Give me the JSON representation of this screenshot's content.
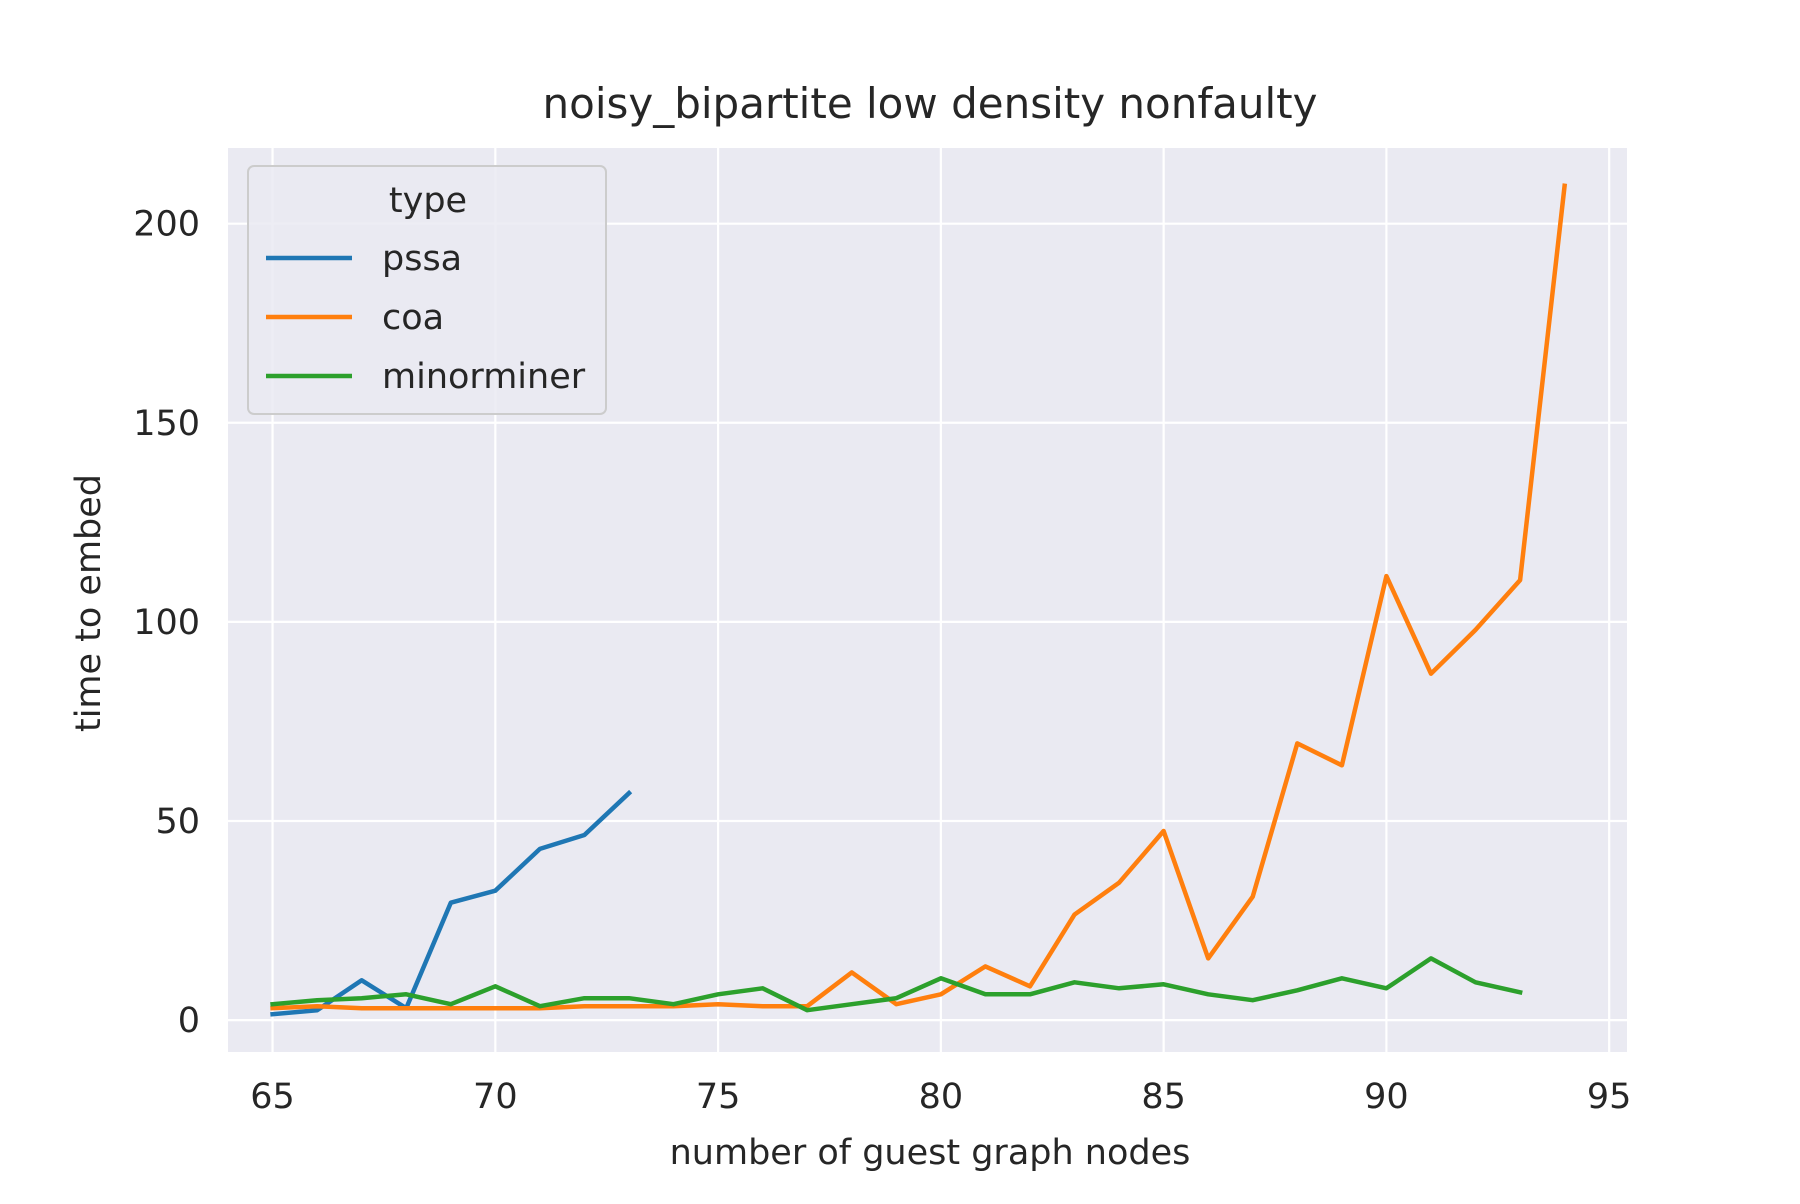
{
  "chart_data": {
    "type": "line",
    "title": "noisy_bipartite low density nonfaulty",
    "xlabel": "number of guest graph nodes",
    "ylabel": "time to embed",
    "xlim": [
      64,
      95.4
    ],
    "ylim": [
      -8,
      219
    ],
    "xticks": [
      65,
      70,
      75,
      80,
      85,
      90,
      95
    ],
    "yticks": [
      0,
      50,
      100,
      150,
      200
    ],
    "grid": true,
    "background": "#eaeaf2",
    "grid_color": "#ffffff",
    "legend": {
      "title": "type",
      "placement": "top-left",
      "entries": [
        "pssa",
        "coa",
        "minorminer"
      ]
    },
    "series": [
      {
        "name": "pssa",
        "color": "#1f77b4",
        "x": [
          65,
          66,
          67,
          68,
          69,
          70,
          71,
          72,
          73
        ],
        "y": [
          1.5,
          2.5,
          10,
          3,
          29.5,
          32.5,
          43,
          46.5,
          57
        ]
      },
      {
        "name": "coa",
        "color": "#ff7f0e",
        "x": [
          65,
          66,
          67,
          68,
          69,
          70,
          71,
          72,
          73,
          74,
          75,
          76,
          77,
          78,
          79,
          80,
          81,
          82,
          83,
          84,
          85,
          86,
          87,
          88,
          89,
          90,
          91,
          92,
          93,
          94
        ],
        "y": [
          3,
          3.5,
          3,
          3,
          3,
          3,
          3,
          3.5,
          3.5,
          3.5,
          4,
          3.5,
          3.5,
          12,
          4,
          6.5,
          13.5,
          8.5,
          26.5,
          34.5,
          47.5,
          15.5,
          31,
          69.5,
          64,
          111.5,
          87,
          98,
          110.5,
          209.5
        ]
      },
      {
        "name": "minorminer",
        "color": "#2ca02c",
        "x": [
          65,
          66,
          67,
          68,
          69,
          70,
          71,
          72,
          73,
          74,
          75,
          76,
          77,
          78,
          79,
          80,
          81,
          82,
          83,
          84,
          85,
          86,
          87,
          88,
          89,
          90,
          91,
          92,
          93
        ],
        "y": [
          4,
          5,
          5.5,
          6.5,
          4,
          8.5,
          3.5,
          5.5,
          5.5,
          4,
          6.5,
          8,
          2.5,
          4,
          5.5,
          10.5,
          6.5,
          6.5,
          9.5,
          8,
          9,
          6.5,
          5,
          7.5,
          10.5,
          8,
          15.5,
          9.5,
          7
        ]
      }
    ]
  }
}
